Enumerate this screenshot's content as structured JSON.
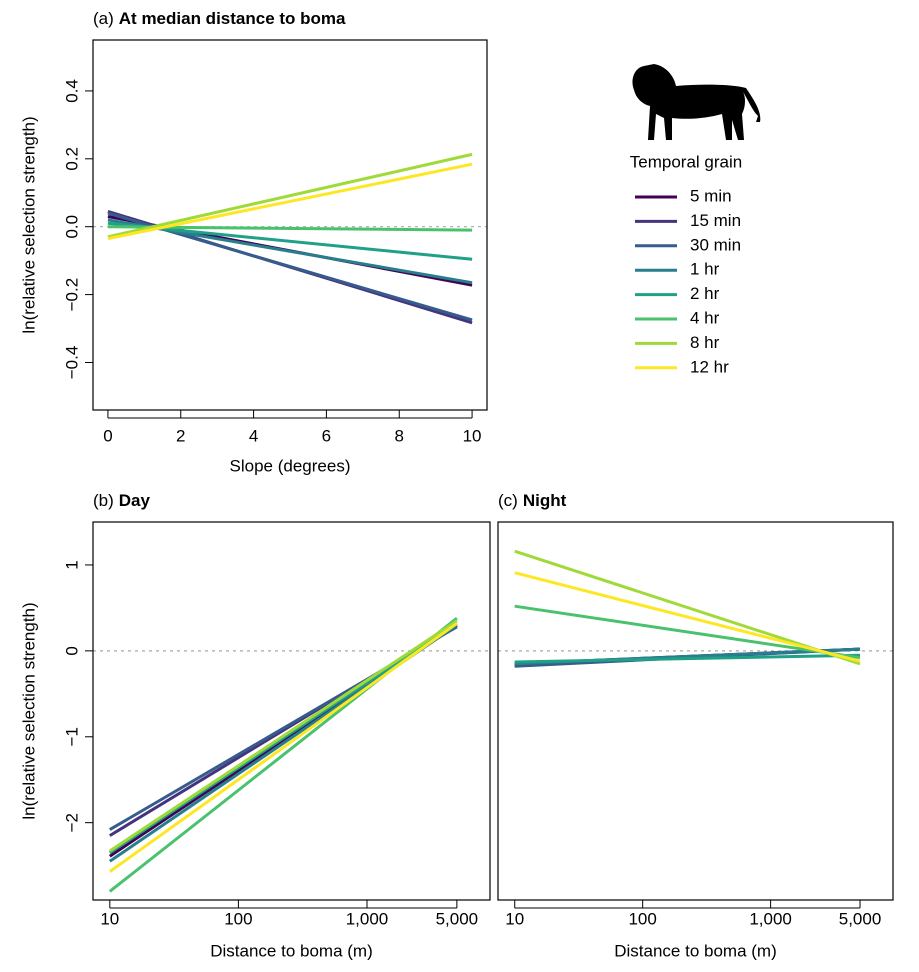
{
  "chart_data": [
    {
      "type": "line",
      "panel_label": "(a)",
      "title": "At median distance to boma",
      "xlabel": "Slope (degrees)",
      "ylabel": "ln(relative selection strength)",
      "x": [
        0,
        10
      ],
      "xlim": [
        -0.41,
        10.41
      ],
      "xticks": [
        0,
        2,
        4,
        6,
        8,
        10
      ],
      "ylim": [
        -0.54,
        0.55
      ],
      "yticks": [
        {
          "value": -0.4,
          "label": "−0.4"
        },
        {
          "value": -0.2,
          "label": "−0.2"
        },
        {
          "value": 0,
          "label": "0.0"
        },
        0.2,
        0.4
      ],
      "reference_line": 0,
      "legend_title": "Temporal grain",
      "series": [
        {
          "name": "5 min",
          "color": "#440154",
          "values": [
            0.03,
            -0.172
          ]
        },
        {
          "name": "15 min",
          "color": "#46337e",
          "values": [
            0.045,
            -0.283
          ]
        },
        {
          "name": "30 min",
          "color": "#365c8d",
          "values": [
            0.04,
            -0.275
          ]
        },
        {
          "name": "1 hr",
          "color": "#277f8e",
          "values": [
            0.02,
            -0.165
          ]
        },
        {
          "name": "2 hr",
          "color": "#1fa187",
          "values": [
            0.01,
            -0.096
          ]
        },
        {
          "name": "4 hr",
          "color": "#4ac16d",
          "values": [
            0.0,
            -0.01
          ]
        },
        {
          "name": "8 hr",
          "color": "#a0da39",
          "values": [
            -0.03,
            0.213
          ]
        },
        {
          "name": "12 hr",
          "color": "#fde725",
          "values": [
            -0.035,
            0.184
          ]
        }
      ]
    },
    {
      "type": "line",
      "panel_label": "(b)",
      "title": "Day",
      "xlabel": "Distance to boma (m)",
      "ylabel": "ln(relative selection strength)",
      "x": [
        10,
        5000
      ],
      "xscale": "log",
      "xlim": [
        7.4,
        9050
      ],
      "xticks": [
        10,
        100,
        {
          "value": 1000,
          "label": "1,000"
        },
        {
          "value": 5000,
          "label": "5,000"
        }
      ],
      "ylim": [
        -2.9,
        1.5
      ],
      "yticks": [
        {
          "value": -2,
          "label": "−2"
        },
        {
          "value": -1,
          "label": "−1"
        },
        0,
        1
      ],
      "reference_line": 0,
      "series": [
        {
          "color": "#440154",
          "values": [
            -2.39,
            0.3
          ]
        },
        {
          "color": "#46337e",
          "values": [
            -2.15,
            0.3
          ]
        },
        {
          "color": "#365c8d",
          "values": [
            -2.08,
            0.28
          ]
        },
        {
          "color": "#277f8e",
          "values": [
            -2.45,
            0.3
          ]
        },
        {
          "color": "#1fa187",
          "values": [
            -2.35,
            0.32
          ]
        },
        {
          "color": "#4ac16d",
          "values": [
            -2.8,
            0.38
          ]
        },
        {
          "color": "#a0da39",
          "values": [
            -2.33,
            0.35
          ]
        },
        {
          "color": "#fde725",
          "values": [
            -2.57,
            0.32
          ]
        }
      ]
    },
    {
      "type": "line",
      "panel_label": "(c)",
      "title": "Night",
      "xlabel": "Distance to boma (m)",
      "x": [
        10,
        5000
      ],
      "xscale": "log",
      "xlim": [
        7.4,
        9050
      ],
      "xticks": [
        10,
        100,
        {
          "value": 1000,
          "label": "1,000"
        },
        {
          "value": 5000,
          "label": "5,000"
        }
      ],
      "ylim": [
        -2.9,
        1.5
      ],
      "reference_line": 0,
      "series": [
        {
          "color": "#440154",
          "values": [
            -0.15,
            0.02
          ]
        },
        {
          "color": "#46337e",
          "values": [
            -0.17,
            0.02
          ]
        },
        {
          "color": "#365c8d",
          "values": [
            -0.18,
            0.02
          ]
        },
        {
          "color": "#277f8e",
          "values": [
            -0.15,
            0.02
          ]
        },
        {
          "color": "#1fa187",
          "values": [
            -0.13,
            -0.05
          ]
        },
        {
          "color": "#4ac16d",
          "values": [
            0.52,
            -0.08
          ]
        },
        {
          "color": "#a0da39",
          "values": [
            1.16,
            -0.15
          ]
        },
        {
          "color": "#fde725",
          "values": [
            0.91,
            -0.12
          ]
        }
      ]
    }
  ]
}
